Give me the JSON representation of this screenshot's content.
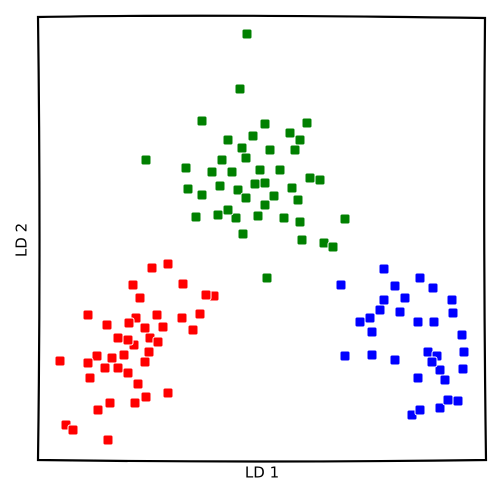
{
  "chart_data": {
    "type": "scatter",
    "xlabel": "LD 1",
    "ylabel": "LD 2",
    "xlim": [
      38,
      485
    ],
    "ylim": [
      0,
      443
    ],
    "grid": false,
    "series": [
      {
        "color": "#ff0000",
        "x": [
          168,
          152,
          183,
          133,
          140,
          214,
          206,
          88,
          107,
          136,
          157,
          200,
          182,
          129,
          145,
          163,
          193,
          118,
          150,
          158,
          134,
          97,
          112,
          124,
          149,
          60,
          88,
          105,
          118,
          128,
          90,
          138,
          168,
          146,
          110,
          98,
          135,
          66,
          73,
          108,
          128,
          145
        ],
        "values": [
          196,
          192,
          176,
          175,
          162,
          164,
          165,
          145,
          135,
          142,
          145,
          146,
          142,
          137,
          132,
          133,
          130,
          122,
          122,
          118,
          115,
          104,
          102,
          105,
          108,
          99,
          97,
          92,
          92,
          87,
          82,
          76,
          67,
          63,
          57,
          50,
          57,
          35,
          30,
          20,
          120,
          98
        ]
      },
      {
        "color": "#008000",
        "x": [
          247,
          240,
          202,
          265,
          307,
          146,
          228,
          242,
          253,
          290,
          300,
          222,
          246,
          270,
          295,
          186,
          212,
          232,
          260,
          280,
          310,
          320,
          188,
          220,
          238,
          255,
          265,
          292,
          202,
          246,
          274,
          298,
          196,
          218,
          236,
          258,
          284,
          345,
          243,
          300,
          302,
          324,
          333,
          267,
          228,
          265
        ],
        "values": [
          426,
          371,
          339,
          336,
          337,
          300,
          320,
          312,
          324,
          327,
          320,
          300,
          302,
          310,
          310,
          292,
          288,
          288,
          290,
          290,
          282,
          280,
          271,
          274,
          270,
          276,
          277,
          272,
          265,
          262,
          264,
          260,
          243,
          245,
          242,
          244,
          242,
          241,
          226,
          238,
          220,
          217,
          213,
          182,
          250,
          255
        ]
      },
      {
        "color": "#0000ff",
        "x": [
          384,
          341,
          420,
          433,
          395,
          384,
          405,
          452,
          360,
          370,
          380,
          400,
          418,
          434,
          453,
          462,
          345,
          372,
          395,
          428,
          437,
          464,
          418,
          440,
          445,
          463,
          412,
          420,
          440,
          448,
          458,
          432,
          372
        ],
        "values": [
          191,
          175,
          182,
          172,
          174,
          160,
          162,
          160,
          138,
          142,
          150,
          148,
          138,
          138,
          147,
          125,
          104,
          105,
          100,
          108,
          104,
          108,
          82,
          90,
          80,
          91,
          45,
          50,
          52,
          60,
          59,
          98,
          128
        ]
      }
    ]
  }
}
